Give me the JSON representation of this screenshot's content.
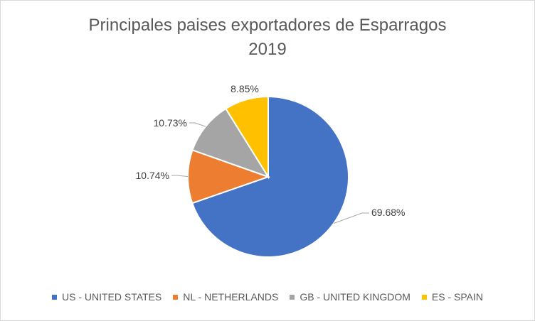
{
  "chart_data": {
    "type": "pie",
    "title": "Principales paises exportadores de Esparragos",
    "subtitle": "2019",
    "categories": [
      "US - UNITED STATES",
      "NL - NETHERLANDS",
      "GB - UNITED KINGDOM",
      "ES - SPAIN"
    ],
    "values": [
      69.68,
      10.74,
      10.73,
      8.85
    ],
    "labels": [
      "69.68%",
      "10.74%",
      "10.73%",
      "8.85%"
    ],
    "colors": [
      "#4472C4",
      "#ED7D31",
      "#A5A5A5",
      "#FFC000"
    ],
    "legend_position": "bottom"
  }
}
